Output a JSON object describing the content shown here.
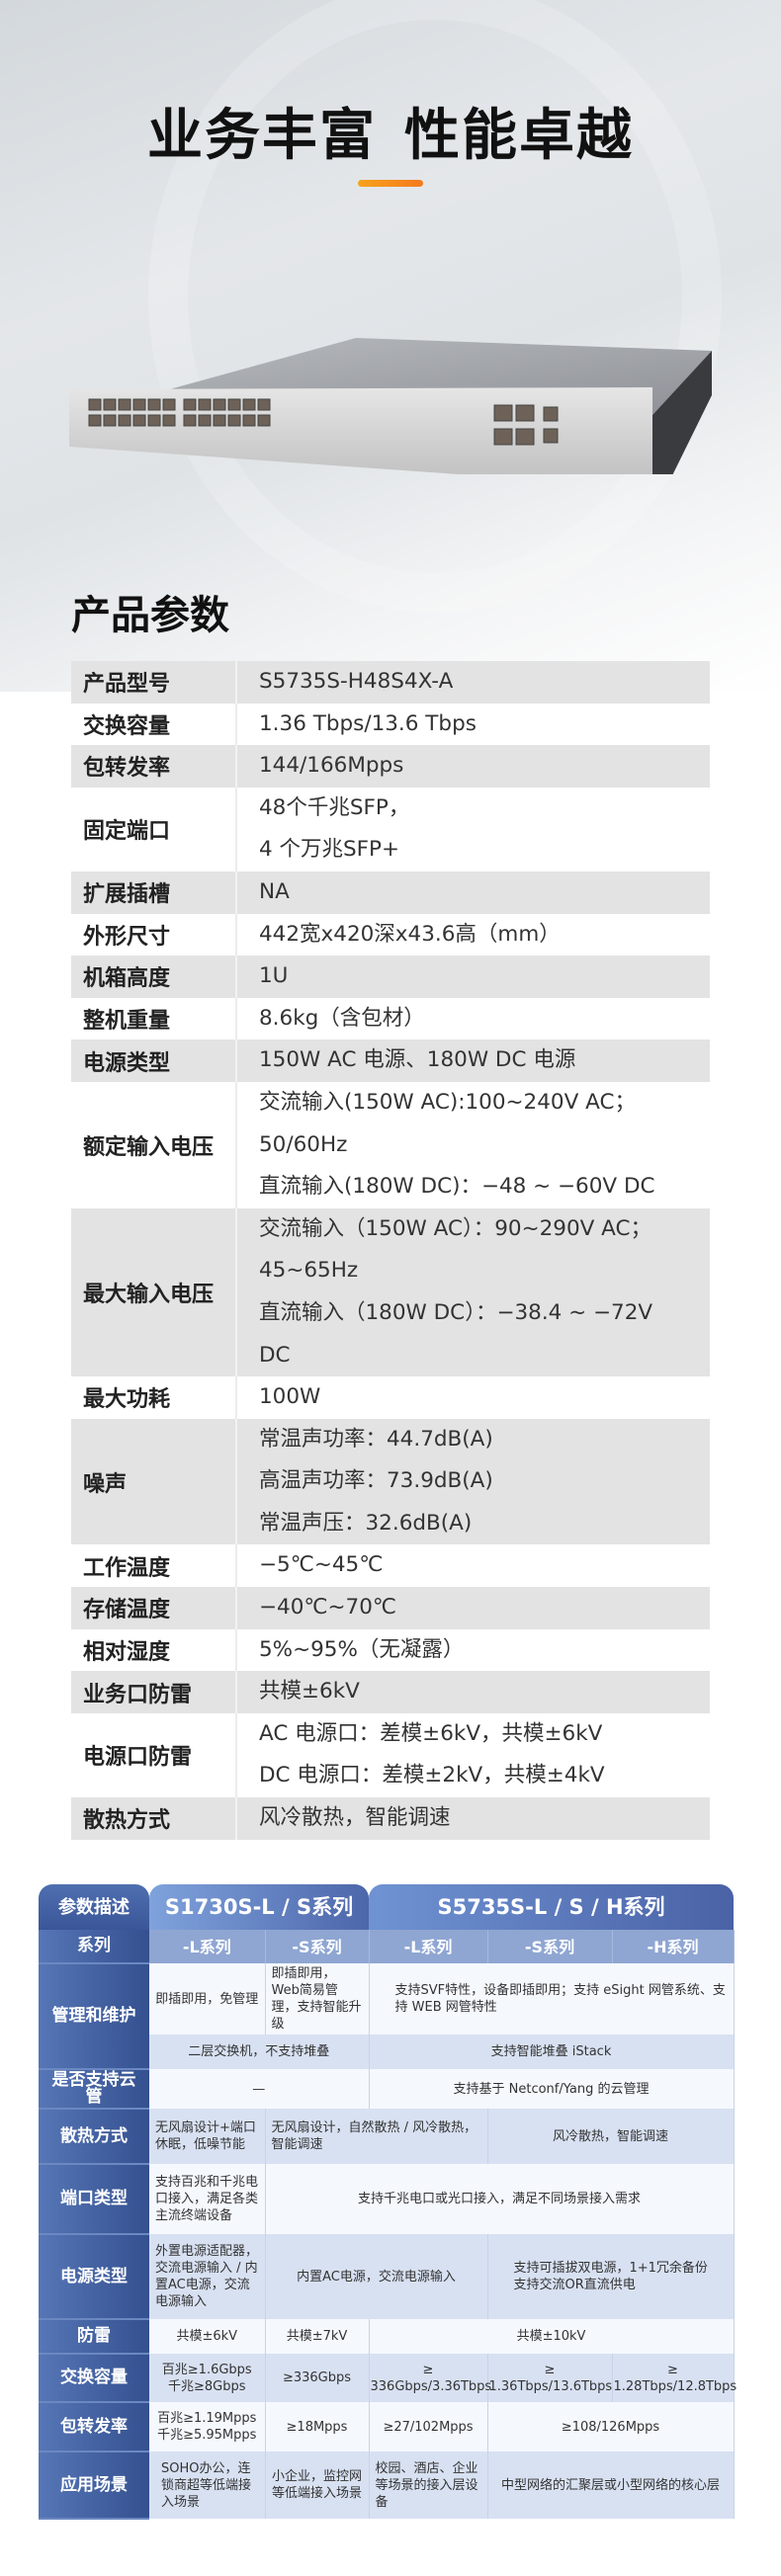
{
  "hero": {
    "title_part1": "业务丰富",
    "title_part2": "性能卓越",
    "accent": "#f58a1c"
  },
  "section_title": "产品参数",
  "spec": [
    {
      "label": "产品型号",
      "lines": [
        "S5735S-H48S4X-A"
      ]
    },
    {
      "label": "交换容量",
      "lines": [
        "1.36 Tbps/13.6 Tbps"
      ]
    },
    {
      "label": "包转发率",
      "lines": [
        "144/166Mpps"
      ]
    },
    {
      "label": "固定端口",
      "lines": [
        "48个千兆SFP，",
        "4 个万兆SFP+"
      ]
    },
    {
      "label": "扩展插槽",
      "lines": [
        "NA"
      ]
    },
    {
      "label": "外形尺寸",
      "lines": [
        "442宽x420深x43.6高（mm）"
      ]
    },
    {
      "label": "机箱高度",
      "lines": [
        "1U"
      ]
    },
    {
      "label": "整机重量",
      "lines": [
        "8.6kg（含包材）"
      ]
    },
    {
      "label": "电源类型",
      "lines": [
        "150W AC 电源、180W DC 电源"
      ]
    },
    {
      "label": "额定输入电压",
      "lines": [
        "交流输入(150W AC):100~240V AC；",
        "50/60Hz",
        "直流输入(180W DC)：−48 ~ −60V DC"
      ]
    },
    {
      "label": "最大输入电压",
      "lines": [
        "交流输入（150W AC）：90~290V AC；",
        "45~65Hz",
        "直流输入（180W DC）：−38.4 ~ −72V",
        "DC"
      ]
    },
    {
      "label": "最大功耗",
      "lines": [
        "100W"
      ]
    },
    {
      "label": "噪声",
      "lines": [
        "常温声功率：44.7dB(A)",
        "高温声功率：73.9dB(A)",
        "常温声压：32.6dB(A)"
      ]
    },
    {
      "label": "工作温度",
      "lines": [
        "−5℃~45℃"
      ]
    },
    {
      "label": "存储温度",
      "lines": [
        "−40℃~70℃"
      ]
    },
    {
      "label": "相对湿度",
      "lines": [
        "5%~95%（无凝露）"
      ]
    },
    {
      "label": "业务口防雷",
      "lines": [
        "共模±6kV"
      ]
    },
    {
      "label": "电源口防雷",
      "lines": [
        "AC 电源口：差模±6kV，共模±6kV",
        "DC 电源口：差模±2kV，共模±4kV"
      ]
    },
    {
      "label": "散热方式",
      "lines": [
        "风冷散热，智能调速"
      ]
    }
  ],
  "compare": {
    "header": {
      "label": "参数描述",
      "s1730": "S1730S-L / S系列",
      "s5735": "S5735S-L / S / H系列"
    },
    "series": {
      "label": "系列",
      "c": [
        "-L系列",
        "-S系列",
        "-L系列",
        "-S系列",
        "-H系列"
      ]
    },
    "mgmt": {
      "label": "管理和维护",
      "l": "即插即用，免管理",
      "s": "即插即用，Web简易管理，支持智能升级",
      "s5735": "支持SVF特性，设备即插即用；支持 eSight 网管系统、支持 WEB 网管特性",
      "stack1730": "二层交换机，不支持堆叠",
      "stack5735": "支持智能堆叠 iStack"
    },
    "cloud": {
      "label": "是否支持云管",
      "s1730": "—",
      "s5735": "支持基于 Netconf/Yang 的云管理"
    },
    "cooling": {
      "label": "散热方式",
      "l": "无风扇设计+端口休眠，低噪节能",
      "mid": "无风扇设计，自然散热 / 风冷散热，智能调速",
      "right": "风冷散热，智能调速"
    },
    "ports": {
      "label": "端口类型",
      "l": "支持百兆和千兆电口接入，满足各类主流终端设备",
      "rest": "支持千兆电口或光口接入，满足不同场景接入需求"
    },
    "power": {
      "label": "电源类型",
      "l": "外置电源适配器，交流电源输入 / 内置AC电源，交流电源输入",
      "mid": "内置AC电源，交流电源输入",
      "right1": "支持可插拔双电源，1+1冗余备份",
      "right2": "支持交流OR直流供电"
    },
    "surge": {
      "label": "防雷",
      "l": "共模±6kV",
      "s": "共模±7kV",
      "s5735": "共模±10kV"
    },
    "capacity": {
      "label": "交换容量",
      "l1": "百兆≥1.6Gbps",
      "l2": "千兆≥8Gbps",
      "s": "≥336Gbps",
      "c5l": "≥ 336Gbps/3.36Tbps",
      "c5s": "≥ 1.36Tbps/13.6Tbps",
      "c5h": "≥ 1.28Tbps/12.8Tbps"
    },
    "pps": {
      "label": "包转发率",
      "l1": "百兆≥1.19Mpps",
      "l2": "千兆≥5.95Mpps",
      "s": "≥18Mpps",
      "c5l": "≥27/102Mpps",
      "c5sh": "≥108/126Mpps"
    },
    "scene": {
      "label": "应用场景",
      "l": "SOHO办公，连锁商超等低端接入场景",
      "s": "小企业，监控网等低端接入场景",
      "c5l": "校园、酒店、企业等场景的接入层设备",
      "c5sh": "中型网络的汇聚层或小型网络的核心层"
    }
  }
}
